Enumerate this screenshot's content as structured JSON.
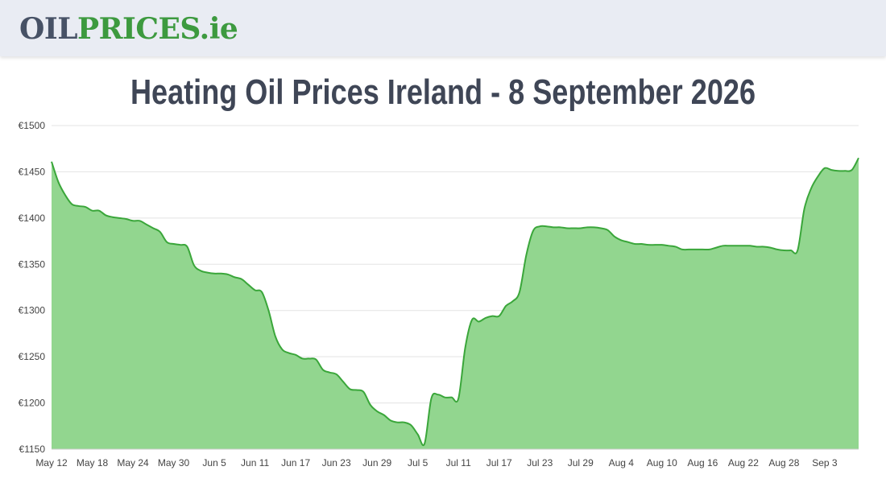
{
  "site": {
    "logo_part_a": "OIL",
    "logo_part_b": "PRICES",
    "logo_part_c": ".ie",
    "logo_colors": {
      "dark": "#475266",
      "green": "#3d9a3f"
    }
  },
  "page_title": "Heating Oil Prices Ireland - 8 September 2026",
  "chart_data": {
    "type": "area",
    "title": "Heating Oil Prices Ireland - 8 September 2026",
    "xlabel": "",
    "ylabel": "",
    "ylim": [
      1150,
      1500
    ],
    "y_ticks": [
      1150,
      1200,
      1250,
      1300,
      1350,
      1400,
      1450,
      1500
    ],
    "y_tick_prefix": "€",
    "x_range": [
      "2026-05-12",
      "2026-09-08"
    ],
    "x_ticks": [
      {
        "date": "2026-05-12",
        "label": "May 12"
      },
      {
        "date": "2026-05-18",
        "label": "May 18"
      },
      {
        "date": "2026-05-24",
        "label": "May 24"
      },
      {
        "date": "2026-05-30",
        "label": "May 30"
      },
      {
        "date": "2026-06-05",
        "label": "Jun 5"
      },
      {
        "date": "2026-06-11",
        "label": "Jun 11"
      },
      {
        "date": "2026-06-17",
        "label": "Jun 17"
      },
      {
        "date": "2026-06-23",
        "label": "Jun 23"
      },
      {
        "date": "2026-06-29",
        "label": "Jun 29"
      },
      {
        "date": "2026-07-05",
        "label": "Jul 5"
      },
      {
        "date": "2026-07-11",
        "label": "Jul 11"
      },
      {
        "date": "2026-07-17",
        "label": "Jul 17"
      },
      {
        "date": "2026-07-23",
        "label": "Jul 23"
      },
      {
        "date": "2026-07-29",
        "label": "Jul 29"
      },
      {
        "date": "2026-08-04",
        "label": "Aug 4"
      },
      {
        "date": "2026-08-10",
        "label": "Aug 10"
      },
      {
        "date": "2026-08-16",
        "label": "Aug 16"
      },
      {
        "date": "2026-08-22",
        "label": "Aug 22"
      },
      {
        "date": "2026-08-28",
        "label": "Aug 28"
      },
      {
        "date": "2026-09-03",
        "label": "Sep 3"
      }
    ],
    "grid": true,
    "line_color": "#3aa63a",
    "fill_color": "#92d68f",
    "series": [
      {
        "points": [
          [
            "2026-05-12",
            1461
          ],
          [
            "2026-05-13",
            1439
          ],
          [
            "2026-05-14",
            1425
          ],
          [
            "2026-05-15",
            1415
          ],
          [
            "2026-05-16",
            1413
          ],
          [
            "2026-05-17",
            1412
          ],
          [
            "2026-05-18",
            1408
          ],
          [
            "2026-05-19",
            1408
          ],
          [
            "2026-05-20",
            1403
          ],
          [
            "2026-05-21",
            1401
          ],
          [
            "2026-05-22",
            1400
          ],
          [
            "2026-05-23",
            1399
          ],
          [
            "2026-05-24",
            1397
          ],
          [
            "2026-05-25",
            1397
          ],
          [
            "2026-05-26",
            1393
          ],
          [
            "2026-05-27",
            1389
          ],
          [
            "2026-05-28",
            1385
          ],
          [
            "2026-05-29",
            1374
          ],
          [
            "2026-05-30",
            1372
          ],
          [
            "2026-05-31",
            1371
          ],
          [
            "2026-06-01",
            1369
          ],
          [
            "2026-06-02",
            1349
          ],
          [
            "2026-06-03",
            1343
          ],
          [
            "2026-06-04",
            1341
          ],
          [
            "2026-06-05",
            1340
          ],
          [
            "2026-06-06",
            1340
          ],
          [
            "2026-06-07",
            1339
          ],
          [
            "2026-06-08",
            1336
          ],
          [
            "2026-06-09",
            1334
          ],
          [
            "2026-06-10",
            1328
          ],
          [
            "2026-06-11",
            1322
          ],
          [
            "2026-06-12",
            1320
          ],
          [
            "2026-06-13",
            1300
          ],
          [
            "2026-06-14",
            1272
          ],
          [
            "2026-06-15",
            1258
          ],
          [
            "2026-06-16",
            1254
          ],
          [
            "2026-06-17",
            1252
          ],
          [
            "2026-06-18",
            1248
          ],
          [
            "2026-06-19",
            1248
          ],
          [
            "2026-06-20",
            1247
          ],
          [
            "2026-06-21",
            1236
          ],
          [
            "2026-06-22",
            1233
          ],
          [
            "2026-06-23",
            1231
          ],
          [
            "2026-06-24",
            1223
          ],
          [
            "2026-06-25",
            1215
          ],
          [
            "2026-06-26",
            1214
          ],
          [
            "2026-06-27",
            1212
          ],
          [
            "2026-06-28",
            1198
          ],
          [
            "2026-06-29",
            1191
          ],
          [
            "2026-06-30",
            1187
          ],
          [
            "2026-07-01",
            1181
          ],
          [
            "2026-07-02",
            1179
          ],
          [
            "2026-07-03",
            1179
          ],
          [
            "2026-07-04",
            1176
          ],
          [
            "2026-07-05",
            1166
          ],
          [
            "2026-07-06",
            1156
          ],
          [
            "2026-07-07",
            1205
          ],
          [
            "2026-07-08",
            1209
          ],
          [
            "2026-07-09",
            1206
          ],
          [
            "2026-07-10",
            1206
          ],
          [
            "2026-07-11",
            1205
          ],
          [
            "2026-07-12",
            1260
          ],
          [
            "2026-07-13",
            1290
          ],
          [
            "2026-07-14",
            1288
          ],
          [
            "2026-07-15",
            1292
          ],
          [
            "2026-07-16",
            1294
          ],
          [
            "2026-07-17",
            1294
          ],
          [
            "2026-07-18",
            1305
          ],
          [
            "2026-07-19",
            1310
          ],
          [
            "2026-07-20",
            1320
          ],
          [
            "2026-07-21",
            1360
          ],
          [
            "2026-07-22",
            1386
          ],
          [
            "2026-07-23",
            1391
          ],
          [
            "2026-07-24",
            1391
          ],
          [
            "2026-07-25",
            1390
          ],
          [
            "2026-07-26",
            1390
          ],
          [
            "2026-07-27",
            1389
          ],
          [
            "2026-07-28",
            1389
          ],
          [
            "2026-07-29",
            1389
          ],
          [
            "2026-07-30",
            1390
          ],
          [
            "2026-07-31",
            1390
          ],
          [
            "2026-08-01",
            1389
          ],
          [
            "2026-08-02",
            1387
          ],
          [
            "2026-08-03",
            1380
          ],
          [
            "2026-08-04",
            1376
          ],
          [
            "2026-08-05",
            1374
          ],
          [
            "2026-08-06",
            1372
          ],
          [
            "2026-08-07",
            1372
          ],
          [
            "2026-08-08",
            1371
          ],
          [
            "2026-08-09",
            1371
          ],
          [
            "2026-08-10",
            1371
          ],
          [
            "2026-08-11",
            1370
          ],
          [
            "2026-08-12",
            1369
          ],
          [
            "2026-08-13",
            1366
          ],
          [
            "2026-08-14",
            1366
          ],
          [
            "2026-08-15",
            1366
          ],
          [
            "2026-08-16",
            1366
          ],
          [
            "2026-08-17",
            1366
          ],
          [
            "2026-08-18",
            1368
          ],
          [
            "2026-08-19",
            1370
          ],
          [
            "2026-08-20",
            1370
          ],
          [
            "2026-08-21",
            1370
          ],
          [
            "2026-08-22",
            1370
          ],
          [
            "2026-08-23",
            1370
          ],
          [
            "2026-08-24",
            1369
          ],
          [
            "2026-08-25",
            1369
          ],
          [
            "2026-08-26",
            1368
          ],
          [
            "2026-08-27",
            1366
          ],
          [
            "2026-08-28",
            1365
          ],
          [
            "2026-08-29",
            1365
          ],
          [
            "2026-08-30",
            1365
          ],
          [
            "2026-08-31",
            1410
          ],
          [
            "2026-09-01",
            1432
          ],
          [
            "2026-09-02",
            1445
          ],
          [
            "2026-09-03",
            1454
          ],
          [
            "2026-09-04",
            1452
          ],
          [
            "2026-09-05",
            1451
          ],
          [
            "2026-09-06",
            1451
          ],
          [
            "2026-09-07",
            1452
          ],
          [
            "2026-09-08",
            1465
          ]
        ]
      }
    ]
  }
}
